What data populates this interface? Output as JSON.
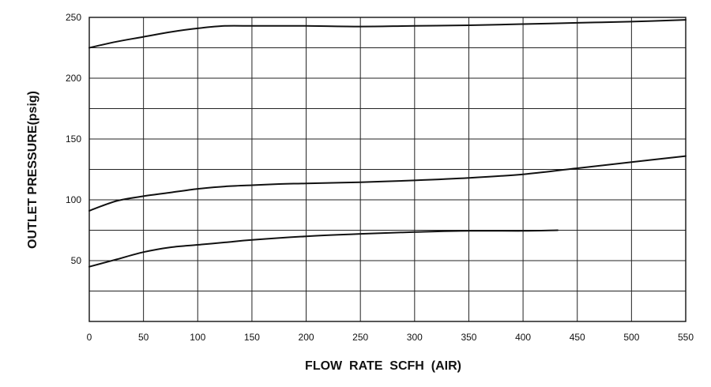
{
  "chart_data": {
    "type": "line",
    "xlabel": "FLOW  RATE  SCFH  (AIR)",
    "ylabel": "OUTLET PRESSURE(psig)",
    "xlim": [
      0,
      550
    ],
    "ylim": [
      0,
      250
    ],
    "grid": true,
    "x_ticks": [
      0,
      50,
      100,
      150,
      200,
      250,
      300,
      350,
      400,
      450,
      500,
      550
    ],
    "y_ticks": [
      50,
      100,
      150,
      200,
      250
    ],
    "x_grid_step": 50,
    "y_grid_step": 25,
    "series": [
      {
        "x": [
          0,
          25,
          50,
          75,
          100,
          125,
          150,
          175,
          200,
          250,
          300,
          350,
          400,
          450,
          500,
          550
        ],
        "y": [
          225,
          230,
          234,
          238,
          241,
          243,
          243,
          243,
          243,
          242.5,
          243,
          243.5,
          244.5,
          245.5,
          246.5,
          248
        ],
        "color": "#111111"
      },
      {
        "x": [
          0,
          25,
          50,
          75,
          100,
          125,
          150,
          175,
          200,
          250,
          300,
          350,
          400,
          450,
          500,
          550
        ],
        "y": [
          91,
          99,
          103,
          106,
          109,
          111,
          112,
          113,
          113.5,
          114.5,
          116,
          118,
          121,
          126,
          131,
          136
        ],
        "color": "#111111"
      },
      {
        "x": [
          0,
          25,
          50,
          75,
          100,
          125,
          150,
          200,
          250,
          300,
          350,
          400,
          432
        ],
        "y": [
          45,
          51,
          57,
          61,
          63,
          65,
          67,
          70,
          72,
          73.5,
          74.5,
          74.5,
          75
        ],
        "color": "#111111"
      }
    ]
  }
}
